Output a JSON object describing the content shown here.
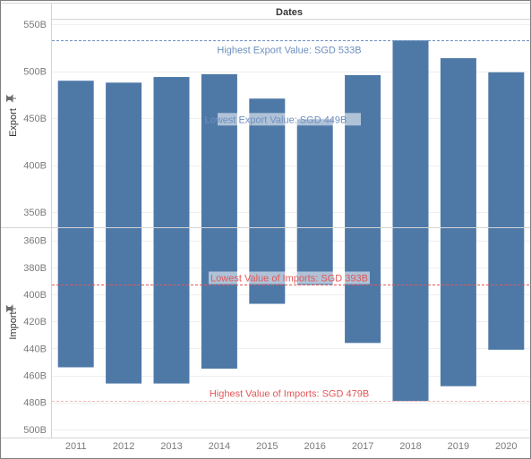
{
  "chart_data": {
    "type": "bar",
    "column_header": "Dates",
    "categories": [
      "2011",
      "2012",
      "2013",
      "2014",
      "2015",
      "2016",
      "2017",
      "2018",
      "2019",
      "2020"
    ],
    "series_color": "#4e79a7",
    "panels": [
      {
        "name": "export",
        "ylabel": "Export",
        "ylabel_icon": "pin-icon",
        "axis_orientation": "normal",
        "ylim": [
          334,
          555
        ],
        "ticks": [
          "350B",
          "400B",
          "450B",
          "500B",
          "550B"
        ],
        "tick_values": [
          350,
          400,
          450,
          500,
          550
        ],
        "values": [
          490,
          488,
          494,
          497,
          471,
          449,
          496,
          533,
          514,
          499
        ],
        "reference_line": {
          "label": "Highest Export Value: SGD 533B",
          "value": 533,
          "color": "#6f8fbf"
        },
        "annotation": {
          "label": "Lowest Export Value: SGD 449B",
          "value": 449
        }
      },
      {
        "name": "import",
        "ylabel": "Import",
        "ylabel_icon": "pin-icon",
        "axis_orientation": "reversed",
        "ylim": [
          351,
          506
        ],
        "ticks": [
          "360B",
          "380B",
          "400B",
          "420B",
          "440B",
          "460B",
          "480B",
          "500B"
        ],
        "tick_values": [
          360,
          380,
          400,
          420,
          440,
          460,
          480,
          500
        ],
        "values": [
          454,
          466,
          466,
          455,
          407,
          393,
          436,
          479,
          468,
          441
        ],
        "reference_line": {
          "label": "Lowest Value of Imports: SGD 393B",
          "value": 393,
          "color": "#e15759"
        },
        "annotation": {
          "label": "Highest Value of Imports: SGD 479B",
          "value": 479
        }
      }
    ]
  }
}
